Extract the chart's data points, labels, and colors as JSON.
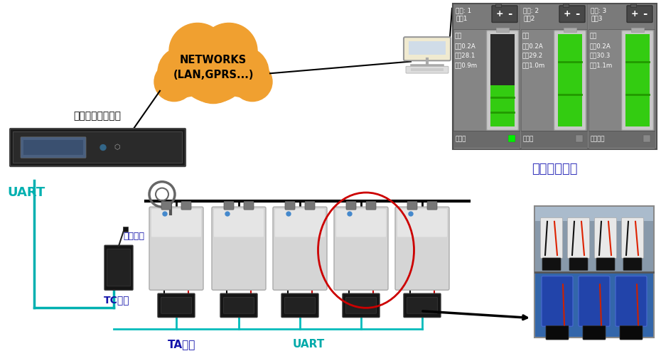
{
  "bg_color": "#ffffff",
  "cloud_color": "#f0a030",
  "cloud_text": "NETWORKS\n(LAN,GPRS...)",
  "cloud_text_color": "#000000",
  "label_uart_left": "UART",
  "label_env_temp": "环境温度",
  "label_tc": "TC模块",
  "label_ta": "TA模块",
  "label_uart_bottom": "UART",
  "label_backend": "后台软件界面",
  "label_monitor": "环境动力监控主机",
  "uart_color": "#00b0b0",
  "label_color_blue": "#1414aa",
  "label_color_cyan": "#00aaaa",
  "cells": [
    {
      "addr": "地址: 1",
      "name": "电池1",
      "volt": "电压",
      "current": "电流0.2A",
      "temp": "温度28.1",
      "resist": "内阻0.9m",
      "status": "充电中",
      "level": 0.45,
      "ind_color": "#00ee00"
    },
    {
      "addr": "地址: 2",
      "name": "电池2",
      "volt": "电压",
      "current": "电流0.2A",
      "temp": "温度29.2",
      "resist": "内阻1.0m",
      "status": "已充满",
      "level": 1.0,
      "ind_color": "#888888"
    },
    {
      "addr": "地址: 3",
      "name": "电池3",
      "volt": "电压",
      "current": "电流0.2A",
      "temp": "温度30.3",
      "resist": "内阻1.1m",
      "status": "电池过冲",
      "level": 1.0,
      "ind_color": "#888888"
    }
  ],
  "line_color_black": "#000000",
  "line_color_red": "#cc0000",
  "line_color_cyan": "#00bbbb",
  "red_oval_color": "#cc0000"
}
